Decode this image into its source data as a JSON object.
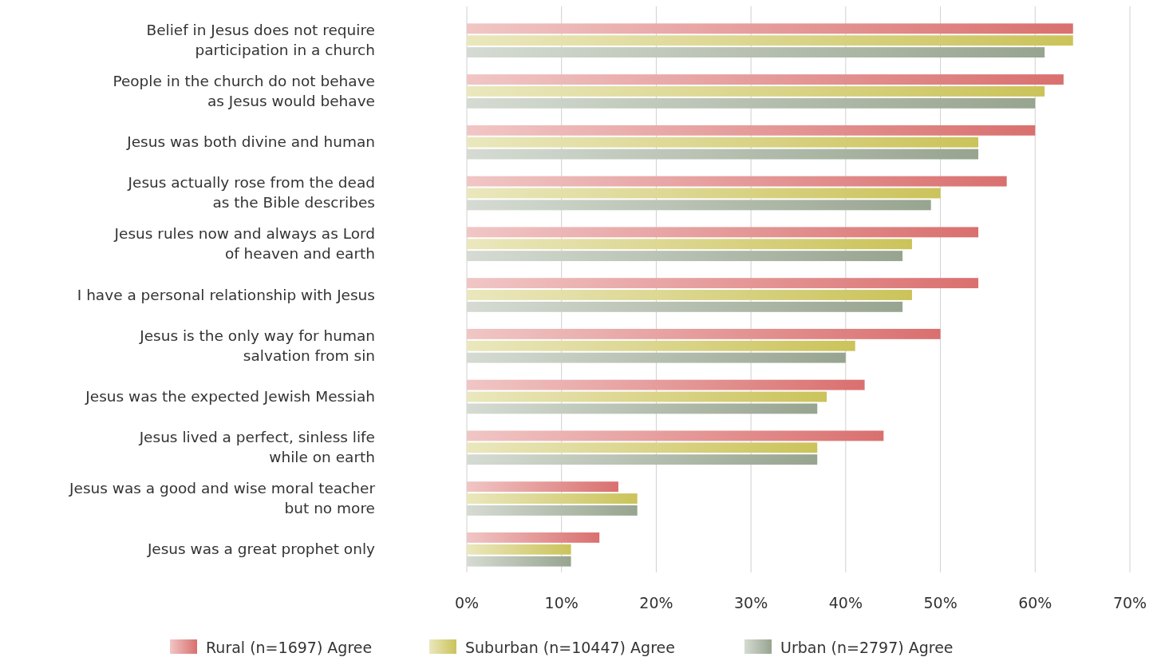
{
  "chart_data": {
    "type": "bar",
    "orientation": "horizontal",
    "categories": [
      "Belief in Jesus does not require\nparticipation in a church",
      "People in the church do not behave\nas Jesus would behave",
      "Jesus was both divine and human",
      "Jesus actually rose from the dead\nas the Bible describes",
      "Jesus rules now and always as Lord\nof heaven and earth",
      "I have a personal relationship with Jesus",
      "Jesus is the only way for human\nsalvation from sin",
      "Jesus was the expected Jewish Messiah",
      "Jesus lived a perfect, sinless life\nwhile on earth",
      "Jesus was a good and wise moral teacher\nbut no more",
      "Jesus was a great prophet only"
    ],
    "series": [
      {
        "name": "Rural (n=1697) Agree",
        "color": "#d9706f",
        "values": [
          64,
          63,
          60,
          57,
          54,
          54,
          50,
          42,
          44,
          16,
          14
        ]
      },
      {
        "name": "Suburban (n=10447) Agree",
        "color": "#cbc35a",
        "values": [
          64,
          61,
          54,
          50,
          47,
          47,
          41,
          38,
          37,
          18,
          11
        ]
      },
      {
        "name": "Urban (n=2797) Agree",
        "color": "#97a48f",
        "values": [
          61,
          60,
          54,
          49,
          46,
          46,
          40,
          37,
          37,
          18,
          11
        ]
      }
    ],
    "xlim": [
      0,
      70
    ],
    "xticks": [
      {
        "value": 0,
        "label": "0%"
      },
      {
        "value": 10,
        "label": "10%"
      },
      {
        "value": 20,
        "label": "20%"
      },
      {
        "value": 30,
        "label": "30%"
      },
      {
        "value": 40,
        "label": "40%"
      },
      {
        "value": 50,
        "label": "50%"
      },
      {
        "value": 60,
        "label": "60%"
      },
      {
        "value": 70,
        "label": "70%"
      }
    ],
    "grid": "x",
    "legend": "bottom"
  }
}
